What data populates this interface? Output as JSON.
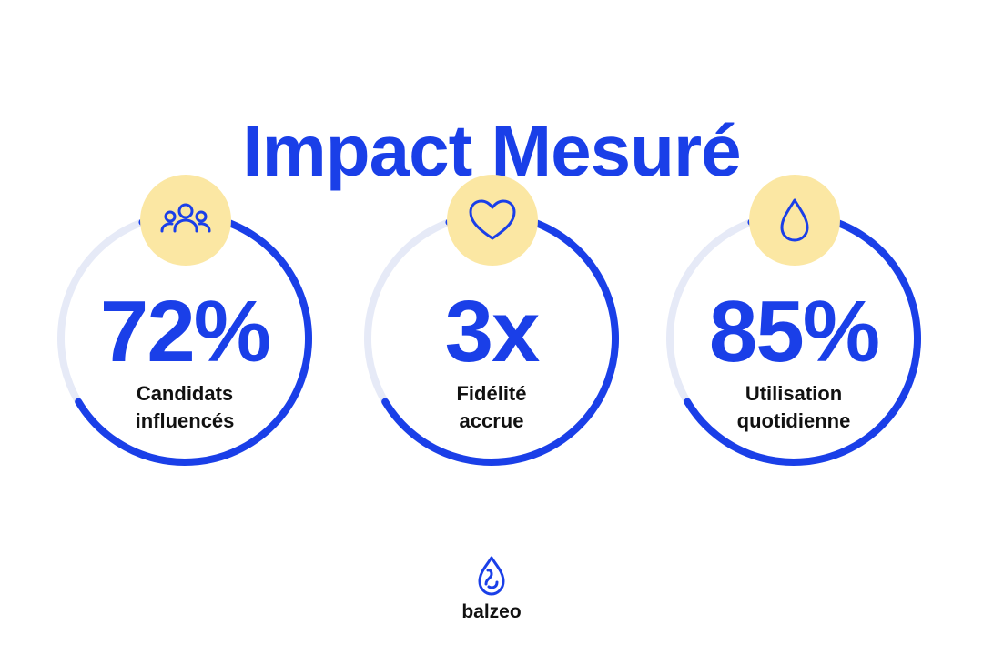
{
  "colors": {
    "accent": "#1A3FE8",
    "track": "#E6EAF7",
    "badge": "#FBE7A3",
    "text": "#111111"
  },
  "title": "Impact Mesuré",
  "stats": [
    {
      "value": "72%",
      "label_lines": [
        "Candidats",
        "influencés"
      ],
      "icon": "users-icon",
      "progress": 0.72
    },
    {
      "value": "3x",
      "label_lines": [
        "Fidélité",
        "accrue"
      ],
      "icon": "heart-icon",
      "progress": 0.72
    },
    {
      "value": "85%",
      "label_lines": [
        "Utilisation",
        "quotidienne"
      ],
      "icon": "drop-icon",
      "progress": 0.72
    }
  ],
  "brand": {
    "name": "balzeo",
    "icon": "balzeo-drop-logo-icon"
  }
}
